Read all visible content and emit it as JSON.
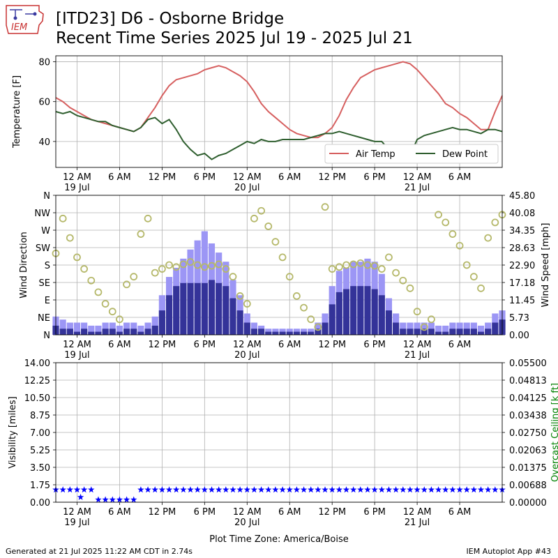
{
  "page": {
    "title_line1": "[ITD23] D6 - Osborne Bridge",
    "title_line2": "Recent Time Series 2025 Jul 19 - 2025 Jul 21",
    "logo_text": "IEM",
    "footer_left": "Generated at 21 Jul 2025 11:22 AM CDT in 2.74s",
    "footer_right": "IEM Autoplot App #43",
    "timezone_label": "Plot Time Zone: America/Boise"
  },
  "colors": {
    "air_temp": "#d65f5f",
    "dew_point": "#2e5e2e",
    "wind_gust_bar": "#9c96f5",
    "wind_speed_bar": "#343399",
    "wind_dir_marker": "#b5b86a",
    "visibility": "#0000ff",
    "ceiling_label": "#008000",
    "grid": "#b0b0b0"
  },
  "chart_data": [
    {
      "type": "line",
      "x_unit": "hours since 2025 Jul 18 21:00",
      "xlim": [
        0,
        63
      ],
      "ylim": [
        27,
        83
      ],
      "ylabel": "Temperature [F]",
      "yticks": [
        40,
        60,
        80
      ],
      "xticks": [
        3,
        9,
        15,
        21,
        27,
        33,
        39,
        45,
        51,
        57
      ],
      "xtick_labels": [
        "12 AM",
        "6 AM",
        "12 PM",
        "6 PM",
        "12 AM",
        "6 AM",
        "12 PM",
        "6 PM",
        "12 AM",
        "6 AM"
      ],
      "xtick_sublabels": [
        "19 Jul",
        "",
        "",
        "",
        "20 Jul",
        "",
        "",
        "",
        "21 Jul",
        ""
      ],
      "legend": "bottom-right",
      "grid": true,
      "series": [
        {
          "name": "Air Temp",
          "x": [
            0,
            1,
            2,
            3,
            4,
            5,
            6,
            7,
            8,
            9,
            10,
            11,
            12,
            13,
            14,
            15,
            16,
            17,
            18,
            19,
            20,
            21,
            22,
            23,
            24,
            25,
            26,
            27,
            28,
            29,
            30,
            31,
            32,
            33,
            34,
            35,
            36,
            37,
            38,
            39,
            40,
            41,
            42,
            43,
            44,
            45,
            46,
            47,
            48,
            49,
            50,
            51,
            52,
            53,
            54,
            55,
            56,
            57,
            58,
            59,
            60,
            61,
            62,
            63
          ],
          "values": [
            62,
            60,
            57,
            55,
            53,
            51,
            50,
            49,
            48,
            47,
            46,
            45,
            47,
            52,
            57,
            63,
            68,
            71,
            72,
            73,
            74,
            76,
            77,
            78,
            77,
            75,
            73,
            70,
            65,
            59,
            55,
            52,
            49,
            46,
            44,
            43,
            42,
            42,
            44,
            47,
            53,
            61,
            67,
            72,
            74,
            76,
            77,
            78,
            79,
            80,
            79,
            76,
            72,
            68,
            64,
            59,
            57,
            54,
            52,
            49,
            46,
            46,
            55,
            63
          ]
        },
        {
          "name": "Dew Point",
          "x": [
            0,
            1,
            2,
            3,
            4,
            5,
            6,
            7,
            8,
            9,
            10,
            11,
            12,
            13,
            14,
            15,
            16,
            17,
            18,
            19,
            20,
            21,
            22,
            23,
            24,
            25,
            26,
            27,
            28,
            29,
            30,
            31,
            32,
            33,
            34,
            35,
            36,
            37,
            38,
            39,
            40,
            41,
            42,
            43,
            44,
            45,
            46,
            47,
            48,
            49,
            50,
            51,
            52,
            53,
            54,
            55,
            56,
            57,
            58,
            59,
            60,
            61,
            62,
            63
          ],
          "values": [
            55,
            54,
            55,
            53,
            52,
            51,
            50,
            50,
            48,
            47,
            46,
            45,
            47,
            51,
            52,
            49,
            51,
            46,
            40,
            36,
            33,
            34,
            31,
            33,
            34,
            36,
            38,
            40,
            39,
            41,
            40,
            40,
            41,
            41,
            41,
            41,
            42,
            43,
            44,
            44,
            45,
            44,
            43,
            42,
            41,
            40,
            40,
            36,
            31,
            30,
            33,
            41,
            43,
            44,
            45,
            46,
            47,
            46,
            46,
            45,
            44,
            46,
            46,
            45
          ]
        }
      ]
    },
    {
      "type": "bar",
      "x_unit": "hours since 2025 Jul 18 21:00",
      "xlim": [
        0,
        63
      ],
      "ylabel": "Wind Direction",
      "ylabel_right": "Wind Speed [mph]",
      "y_left_labels": [
        "N",
        "NE",
        "E",
        "SE",
        "S",
        "SW",
        "W",
        "NW",
        "N"
      ],
      "y_right_ticks": [
        "0.00",
        "5.73",
        "11.45",
        "17.18",
        "22.90",
        "28.63",
        "34.35",
        "40.08",
        "45.80"
      ],
      "y_right_lim": [
        0,
        45.8
      ],
      "y_left_lim": [
        0,
        360
      ],
      "xticks": [
        3,
        9,
        15,
        21,
        27,
        33,
        39,
        45,
        51,
        57
      ],
      "xtick_labels": [
        "12 AM",
        "6 AM",
        "12 PM",
        "6 PM",
        "12 AM",
        "6 AM",
        "12 PM",
        "6 PM",
        "12 AM",
        "6 AM"
      ],
      "xtick_sublabels": [
        "19 Jul",
        "",
        "",
        "",
        "20 Jul",
        "",
        "",
        "",
        "21 Jul",
        ""
      ],
      "grid": true,
      "series": [
        {
          "name": "Wind Speed",
          "x": [
            0,
            1,
            2,
            3,
            4,
            5,
            6,
            7,
            8,
            9,
            10,
            11,
            12,
            13,
            14,
            15,
            16,
            17,
            18,
            19,
            20,
            21,
            22,
            23,
            24,
            25,
            26,
            27,
            28,
            29,
            30,
            31,
            32,
            33,
            34,
            35,
            36,
            37,
            38,
            39,
            40,
            41,
            42,
            43,
            44,
            45,
            46,
            47,
            48,
            49,
            50,
            51,
            52,
            53,
            54,
            55,
            56,
            57,
            58,
            59,
            60,
            61,
            62,
            63
          ],
          "values": [
            3,
            2,
            2,
            1,
            2,
            1,
            1,
            2,
            2,
            1,
            2,
            2,
            1,
            2,
            3,
            8,
            13,
            16,
            17,
            17,
            17,
            17,
            18,
            17,
            16,
            12,
            8,
            4,
            2,
            2,
            1,
            1,
            1,
            1,
            1,
            1,
            1,
            2,
            4,
            10,
            14,
            15,
            16,
            16,
            16,
            15,
            13,
            8,
            4,
            2,
            2,
            2,
            2,
            2,
            1,
            1,
            2,
            2,
            2,
            2,
            1,
            2,
            4,
            5
          ]
        },
        {
          "name": "Wind Gust",
          "x": [
            0,
            1,
            2,
            3,
            4,
            5,
            6,
            7,
            8,
            9,
            10,
            11,
            12,
            13,
            14,
            15,
            16,
            17,
            18,
            19,
            20,
            21,
            22,
            23,
            24,
            25,
            26,
            27,
            28,
            29,
            30,
            31,
            32,
            33,
            34,
            35,
            36,
            37,
            38,
            39,
            40,
            41,
            42,
            43,
            44,
            45,
            46,
            47,
            48,
            49,
            50,
            51,
            52,
            53,
            54,
            55,
            56,
            57,
            58,
            59,
            60,
            61,
            62,
            63
          ],
          "values": [
            6,
            5,
            4,
            4,
            4,
            3,
            3,
            4,
            4,
            3,
            4,
            4,
            3,
            4,
            6,
            13,
            19,
            22,
            25,
            28,
            31,
            34,
            30,
            27,
            24,
            18,
            13,
            7,
            4,
            3,
            2,
            2,
            2,
            2,
            2,
            2,
            2,
            4,
            7,
            16,
            21,
            22,
            24,
            24,
            25,
            24,
            20,
            12,
            7,
            4,
            4,
            4,
            4,
            4,
            3,
            3,
            4,
            4,
            4,
            4,
            3,
            4,
            7,
            8
          ]
        },
        {
          "name": "Wind Direction",
          "x": [
            0,
            1,
            2,
            3,
            4,
            5,
            6,
            7,
            8,
            9,
            10,
            11,
            12,
            13,
            14,
            15,
            16,
            17,
            18,
            19,
            20,
            21,
            22,
            23,
            24,
            25,
            26,
            27,
            28,
            29,
            30,
            31,
            32,
            33,
            34,
            35,
            36,
            37,
            38,
            39,
            40,
            41,
            42,
            43,
            44,
            45,
            46,
            47,
            48,
            49,
            50,
            51,
            52,
            53,
            54,
            55,
            56,
            57,
            58,
            59,
            60,
            61,
            62,
            63
          ],
          "values": [
            210,
            300,
            250,
            200,
            170,
            140,
            110,
            80,
            60,
            40,
            130,
            150,
            260,
            300,
            160,
            170,
            180,
            175,
            182,
            188,
            180,
            175,
            178,
            182,
            170,
            150,
            100,
            80,
            300,
            320,
            280,
            240,
            200,
            150,
            100,
            70,
            40,
            20,
            330,
            170,
            175,
            180,
            182,
            185,
            180,
            178,
            170,
            200,
            160,
            140,
            120,
            60,
            20,
            40,
            310,
            290,
            260,
            230,
            180,
            150,
            120,
            250,
            290,
            310
          ]
        }
      ]
    },
    {
      "type": "scatter",
      "x_unit": "hours since 2025 Jul 18 21:00",
      "xlim": [
        0,
        63
      ],
      "ylim": [
        0,
        14
      ],
      "ylabel": "Visibility [miles]",
      "ylabel_right": "Overcast Ceiling [k ft]",
      "yticks": [
        "0.00",
        "1.75",
        "3.50",
        "5.25",
        "7.00",
        "8.75",
        "10.50",
        "12.25",
        "14.00"
      ],
      "y_right_ticks": [
        "0.00000",
        "0.00688",
        "0.01375",
        "0.02063",
        "0.02750",
        "0.03438",
        "0.04125",
        "0.04813",
        "0.05500"
      ],
      "xticks": [
        3,
        9,
        15,
        21,
        27,
        33,
        39,
        45,
        51,
        57
      ],
      "xtick_labels": [
        "12 AM",
        "6 AM",
        "12 PM",
        "6 PM",
        "12 AM",
        "6 AM",
        "12 PM",
        "6 PM",
        "12 AM",
        "6 AM"
      ],
      "xtick_sublabels": [
        "19 Jul",
        "",
        "",
        "",
        "20 Jul",
        "",
        "",
        "",
        "21 Jul",
        ""
      ],
      "xlabel": "Plot Time Zone: America/Boise",
      "grid": true,
      "series": [
        {
          "name": "Visibility",
          "x": [
            0,
            1,
            2,
            3,
            3.5,
            4,
            5,
            6,
            7,
            8,
            9,
            10,
            11,
            12,
            13,
            14,
            15,
            16,
            17,
            18,
            19,
            20,
            21,
            22,
            23,
            24,
            25,
            26,
            27,
            28,
            29,
            30,
            31,
            32,
            33,
            34,
            35,
            36,
            37,
            38,
            39,
            40,
            41,
            42,
            43,
            44,
            45,
            46,
            47,
            48,
            49,
            50,
            51,
            52,
            53,
            54,
            55,
            56,
            57,
            58,
            59,
            60,
            61,
            62,
            63
          ],
          "values": [
            1.25,
            1.25,
            1.25,
            1.25,
            0.5,
            1.25,
            1.25,
            0.25,
            0.25,
            0.25,
            0.25,
            0.25,
            0.25,
            1.25,
            1.25,
            1.25,
            1.25,
            1.25,
            1.25,
            1.25,
            1.25,
            1.25,
            1.25,
            1.25,
            1.25,
            1.25,
            1.25,
            1.25,
            1.25,
            1.25,
            1.25,
            1.25,
            1.25,
            1.25,
            1.25,
            1.25,
            1.25,
            1.25,
            1.25,
            1.25,
            1.25,
            1.25,
            1.25,
            1.25,
            1.25,
            1.25,
            1.25,
            1.25,
            1.25,
            1.25,
            1.25,
            1.25,
            1.25,
            1.25,
            1.25,
            1.25,
            1.25,
            1.25,
            1.25,
            1.25,
            1.25,
            1.25,
            1.25,
            1.25,
            1.25
          ]
        }
      ]
    }
  ]
}
